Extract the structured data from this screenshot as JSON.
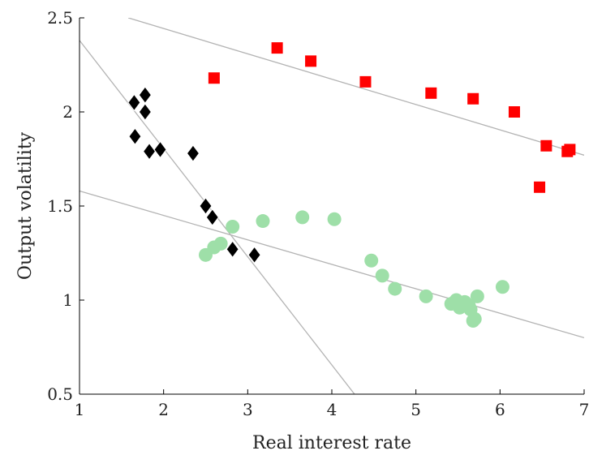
{
  "chart_data": {
    "type": "scatter",
    "xlabel": "Real interest rate",
    "ylabel": "Output volatility",
    "xlim": [
      1,
      7
    ],
    "ylim": [
      0.5,
      2.5
    ],
    "xticks": [
      "1",
      "2",
      "3",
      "4",
      "5",
      "6",
      "7"
    ],
    "yticks": [
      "0.5",
      "1",
      "1.5",
      "2",
      "2.5"
    ],
    "grid": false,
    "series": [
      {
        "marker": "diamond",
        "color": "#000000",
        "points": [
          [
            1.65,
            2.05
          ],
          [
            1.78,
            2.09
          ],
          [
            1.78,
            2.0
          ],
          [
            1.66,
            1.87
          ],
          [
            1.83,
            1.79
          ],
          [
            1.96,
            1.8
          ],
          [
            2.35,
            1.78
          ],
          [
            2.5,
            1.5
          ],
          [
            2.58,
            1.44
          ],
          [
            2.82,
            1.27
          ],
          [
            3.08,
            1.24
          ]
        ],
        "fit": [
          [
            1.0,
            2.38
          ],
          [
            4.27,
            0.5
          ]
        ]
      },
      {
        "marker": "square",
        "color": "#ff0000",
        "points": [
          [
            2.6,
            2.18
          ],
          [
            3.35,
            2.34
          ],
          [
            3.75,
            2.27
          ],
          [
            4.4,
            2.16
          ],
          [
            5.18,
            2.1
          ],
          [
            5.68,
            2.07
          ],
          [
            6.17,
            2.0
          ],
          [
            6.55,
            1.82
          ],
          [
            6.47,
            1.6
          ],
          [
            6.8,
            1.79
          ],
          [
            6.83,
            1.8
          ]
        ],
        "fit": [
          [
            1.58,
            2.5
          ],
          [
            7.0,
            1.77
          ]
        ]
      },
      {
        "marker": "circle",
        "color": "#9edfa8",
        "points": [
          [
            2.5,
            1.24
          ],
          [
            2.6,
            1.28
          ],
          [
            2.68,
            1.3
          ],
          [
            2.82,
            1.39
          ],
          [
            3.18,
            1.42
          ],
          [
            3.65,
            1.44
          ],
          [
            4.03,
            1.43
          ],
          [
            4.47,
            1.21
          ],
          [
            4.6,
            1.13
          ],
          [
            4.75,
            1.06
          ],
          [
            5.12,
            1.02
          ],
          [
            5.42,
            0.98
          ],
          [
            5.48,
            1.0
          ],
          [
            5.52,
            0.96
          ],
          [
            5.58,
            0.99
          ],
          [
            5.63,
            0.97
          ],
          [
            5.65,
            0.95
          ],
          [
            5.68,
            0.89
          ],
          [
            5.7,
            0.9
          ],
          [
            5.73,
            1.02
          ],
          [
            6.03,
            1.07
          ]
        ],
        "fit": [
          [
            1.0,
            1.58
          ],
          [
            7.0,
            0.8
          ]
        ]
      }
    ]
  }
}
